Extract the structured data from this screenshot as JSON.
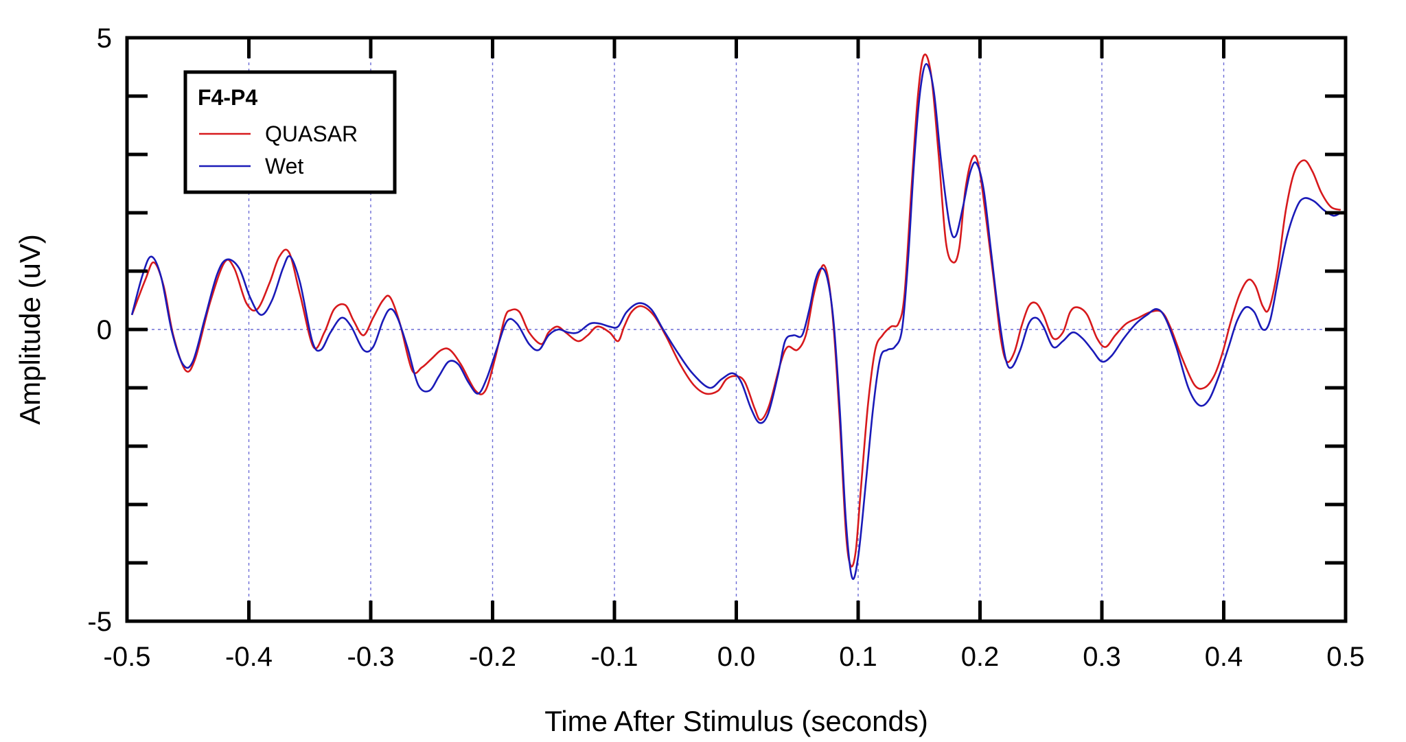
{
  "chart_data": {
    "type": "line",
    "xlabel": "Time After Stimulus (seconds)",
    "ylabel": "Amplitude (uV)",
    "xlim": [
      -0.5,
      0.5
    ],
    "ylim": [
      -5,
      5
    ],
    "x_ticks": [
      -0.5,
      -0.4,
      -0.3,
      -0.2,
      -0.1,
      0.0,
      0.1,
      0.2,
      0.3,
      0.4,
      0.5
    ],
    "x_tick_labels": [
      "-0.5",
      "-0.4",
      "-0.3",
      "-0.2",
      "-0.1",
      "0.0",
      "0.1",
      "0.2",
      "0.3",
      "0.4",
      "0.5"
    ],
    "y_tick_labels": [
      {
        "value": 5,
        "label": "5"
      },
      {
        "value": 0,
        "label": "0"
      },
      {
        "value": -5,
        "label": "-5"
      }
    ],
    "y_minor_ticks": [
      -4,
      -3,
      -2,
      -1,
      1,
      2,
      3,
      4
    ],
    "grid": "dashed at major ticks",
    "legend": {
      "title": "F4-P4",
      "position": "top-left",
      "entries": [
        {
          "name": "QUASAR",
          "color": "#d7191c"
        },
        {
          "name": "Wet",
          "color": "#1a1ab8"
        }
      ]
    },
    "series": [
      {
        "name": "QUASAR",
        "color": "#d7191c",
        "points": [
          [
            -0.496,
            0.25
          ],
          [
            -0.485,
            0.85
          ],
          [
            -0.478,
            1.15
          ],
          [
            -0.47,
            0.75
          ],
          [
            -0.462,
            -0.1
          ],
          [
            -0.452,
            -0.7
          ],
          [
            -0.444,
            -0.5
          ],
          [
            -0.432,
            0.45
          ],
          [
            -0.42,
            1.15
          ],
          [
            -0.412,
            1.05
          ],
          [
            -0.402,
            0.45
          ],
          [
            -0.393,
            0.35
          ],
          [
            -0.383,
            0.8
          ],
          [
            -0.375,
            1.25
          ],
          [
            -0.367,
            1.32
          ],
          [
            -0.358,
            0.6
          ],
          [
            -0.347,
            -0.3
          ],
          [
            -0.338,
            -0.05
          ],
          [
            -0.33,
            0.35
          ],
          [
            -0.321,
            0.42
          ],
          [
            -0.314,
            0.15
          ],
          [
            -0.306,
            -0.1
          ],
          [
            -0.298,
            0.2
          ],
          [
            -0.29,
            0.5
          ],
          [
            -0.284,
            0.55
          ],
          [
            -0.276,
            0.1
          ],
          [
            -0.266,
            -0.7
          ],
          [
            -0.258,
            -0.65
          ],
          [
            -0.25,
            -0.5
          ],
          [
            -0.242,
            -0.35
          ],
          [
            -0.235,
            -0.35
          ],
          [
            -0.226,
            -0.6
          ],
          [
            -0.214,
            -1.05
          ],
          [
            -0.206,
            -1.05
          ],
          [
            -0.198,
            -0.5
          ],
          [
            -0.19,
            0.2
          ],
          [
            -0.185,
            0.33
          ],
          [
            -0.178,
            0.3
          ],
          [
            -0.17,
            -0.05
          ],
          [
            -0.16,
            -0.25
          ],
          [
            -0.154,
            -0.05
          ],
          [
            -0.147,
            0.05
          ],
          [
            -0.14,
            -0.05
          ],
          [
            -0.13,
            -0.2
          ],
          [
            -0.122,
            -0.1
          ],
          [
            -0.114,
            0.05
          ],
          [
            -0.104,
            -0.05
          ],
          [
            -0.097,
            -0.2
          ],
          [
            -0.092,
            0.05
          ],
          [
            -0.086,
            0.3
          ],
          [
            -0.078,
            0.4
          ],
          [
            -0.068,
            0.25
          ],
          [
            -0.058,
            -0.1
          ],
          [
            -0.046,
            -0.6
          ],
          [
            -0.035,
            -0.95
          ],
          [
            -0.025,
            -1.1
          ],
          [
            -0.015,
            -1.05
          ],
          [
            -0.008,
            -0.85
          ],
          [
            0.0,
            -0.8
          ],
          [
            0.007,
            -0.9
          ],
          [
            0.015,
            -1.35
          ],
          [
            0.02,
            -1.55
          ],
          [
            0.027,
            -1.3
          ],
          [
            0.036,
            -0.6
          ],
          [
            0.042,
            -0.3
          ],
          [
            0.05,
            -0.35
          ],
          [
            0.057,
            -0.1
          ],
          [
            0.063,
            0.55
          ],
          [
            0.068,
            0.95
          ],
          [
            0.072,
            1.1
          ],
          [
            0.076,
            0.8
          ],
          [
            0.08,
            0.0
          ],
          [
            0.085,
            -1.6
          ],
          [
            0.09,
            -3.5
          ],
          [
            0.094,
            -4.05
          ],
          [
            0.098,
            -3.8
          ],
          [
            0.102,
            -2.8
          ],
          [
            0.108,
            -1.3
          ],
          [
            0.114,
            -0.35
          ],
          [
            0.12,
            -0.1
          ],
          [
            0.127,
            0.05
          ],
          [
            0.133,
            0.1
          ],
          [
            0.138,
            0.6
          ],
          [
            0.144,
            2.5
          ],
          [
            0.149,
            4.0
          ],
          [
            0.154,
            4.7
          ],
          [
            0.16,
            4.35
          ],
          [
            0.166,
            3.0
          ],
          [
            0.172,
            1.5
          ],
          [
            0.178,
            1.15
          ],
          [
            0.183,
            1.4
          ],
          [
            0.188,
            2.4
          ],
          [
            0.194,
            2.95
          ],
          [
            0.199,
            2.8
          ],
          [
            0.205,
            1.9
          ],
          [
            0.211,
            0.9
          ],
          [
            0.217,
            -0.15
          ],
          [
            0.222,
            -0.55
          ],
          [
            0.228,
            -0.4
          ],
          [
            0.234,
            0.05
          ],
          [
            0.24,
            0.4
          ],
          [
            0.246,
            0.45
          ],
          [
            0.252,
            0.25
          ],
          [
            0.26,
            -0.15
          ],
          [
            0.268,
            -0.05
          ],
          [
            0.274,
            0.3
          ],
          [
            0.28,
            0.38
          ],
          [
            0.288,
            0.25
          ],
          [
            0.296,
            -0.15
          ],
          [
            0.303,
            -0.3
          ],
          [
            0.311,
            -0.1
          ],
          [
            0.32,
            0.1
          ],
          [
            0.33,
            0.2
          ],
          [
            0.34,
            0.3
          ],
          [
            0.349,
            0.3
          ],
          [
            0.356,
            0.05
          ],
          [
            0.366,
            -0.5
          ],
          [
            0.376,
            -0.95
          ],
          [
            0.384,
            -1.0
          ],
          [
            0.392,
            -0.8
          ],
          [
            0.399,
            -0.4
          ],
          [
            0.406,
            0.15
          ],
          [
            0.413,
            0.6
          ],
          [
            0.42,
            0.85
          ],
          [
            0.426,
            0.75
          ],
          [
            0.432,
            0.4
          ],
          [
            0.437,
            0.35
          ],
          [
            0.444,
            1.0
          ],
          [
            0.451,
            2.05
          ],
          [
            0.458,
            2.7
          ],
          [
            0.466,
            2.9
          ],
          [
            0.473,
            2.7
          ],
          [
            0.48,
            2.35
          ],
          [
            0.488,
            2.1
          ],
          [
            0.496,
            2.05
          ]
        ]
      },
      {
        "name": "Wet",
        "color": "#1a1ab8",
        "points": [
          [
            -0.496,
            0.25
          ],
          [
            -0.487,
            0.95
          ],
          [
            -0.48,
            1.25
          ],
          [
            -0.472,
            0.9
          ],
          [
            -0.463,
            -0.05
          ],
          [
            -0.454,
            -0.6
          ],
          [
            -0.446,
            -0.55
          ],
          [
            -0.436,
            0.2
          ],
          [
            -0.426,
            0.95
          ],
          [
            -0.418,
            1.2
          ],
          [
            -0.408,
            1.05
          ],
          [
            -0.399,
            0.55
          ],
          [
            -0.39,
            0.25
          ],
          [
            -0.381,
            0.5
          ],
          [
            -0.372,
            1.05
          ],
          [
            -0.366,
            1.25
          ],
          [
            -0.358,
            0.8
          ],
          [
            -0.348,
            -0.2
          ],
          [
            -0.341,
            -0.35
          ],
          [
            -0.333,
            -0.05
          ],
          [
            -0.324,
            0.2
          ],
          [
            -0.316,
            0.05
          ],
          [
            -0.306,
            -0.35
          ],
          [
            -0.298,
            -0.3
          ],
          [
            -0.29,
            0.15
          ],
          [
            -0.284,
            0.35
          ],
          [
            -0.278,
            0.2
          ],
          [
            -0.27,
            -0.3
          ],
          [
            -0.261,
            -0.95
          ],
          [
            -0.252,
            -1.05
          ],
          [
            -0.244,
            -0.8
          ],
          [
            -0.236,
            -0.55
          ],
          [
            -0.228,
            -0.6
          ],
          [
            -0.22,
            -0.9
          ],
          [
            -0.212,
            -1.1
          ],
          [
            -0.205,
            -0.85
          ],
          [
            -0.196,
            -0.3
          ],
          [
            -0.188,
            0.15
          ],
          [
            -0.18,
            0.1
          ],
          [
            -0.17,
            -0.25
          ],
          [
            -0.162,
            -0.35
          ],
          [
            -0.154,
            -0.1
          ],
          [
            -0.146,
            0.0
          ],
          [
            -0.138,
            -0.05
          ],
          [
            -0.13,
            -0.05
          ],
          [
            -0.12,
            0.1
          ],
          [
            -0.112,
            0.1
          ],
          [
            -0.104,
            0.05
          ],
          [
            -0.097,
            0.05
          ],
          [
            -0.09,
            0.3
          ],
          [
            -0.08,
            0.45
          ],
          [
            -0.07,
            0.35
          ],
          [
            -0.06,
            0.0
          ],
          [
            -0.048,
            -0.4
          ],
          [
            -0.036,
            -0.75
          ],
          [
            -0.022,
            -1.0
          ],
          [
            -0.012,
            -0.85
          ],
          [
            -0.003,
            -0.75
          ],
          [
            0.004,
            -0.9
          ],
          [
            0.012,
            -1.35
          ],
          [
            0.019,
            -1.6
          ],
          [
            0.026,
            -1.45
          ],
          [
            0.034,
            -0.8
          ],
          [
            0.04,
            -0.2
          ],
          [
            0.047,
            -0.1
          ],
          [
            0.054,
            -0.1
          ],
          [
            0.06,
            0.35
          ],
          [
            0.065,
            0.85
          ],
          [
            0.07,
            1.05
          ],
          [
            0.075,
            0.85
          ],
          [
            0.08,
            0.1
          ],
          [
            0.085,
            -1.4
          ],
          [
            0.09,
            -3.3
          ],
          [
            0.095,
            -4.25
          ],
          [
            0.1,
            -3.9
          ],
          [
            0.106,
            -2.7
          ],
          [
            0.112,
            -1.4
          ],
          [
            0.118,
            -0.5
          ],
          [
            0.124,
            -0.35
          ],
          [
            0.13,
            -0.3
          ],
          [
            0.136,
            0.0
          ],
          [
            0.141,
            1.2
          ],
          [
            0.146,
            2.9
          ],
          [
            0.151,
            4.1
          ],
          [
            0.156,
            4.55
          ],
          [
            0.162,
            4.1
          ],
          [
            0.168,
            2.9
          ],
          [
            0.175,
            1.8
          ],
          [
            0.18,
            1.6
          ],
          [
            0.186,
            2.1
          ],
          [
            0.192,
            2.7
          ],
          [
            0.197,
            2.85
          ],
          [
            0.203,
            2.4
          ],
          [
            0.209,
            1.35
          ],
          [
            0.215,
            0.3
          ],
          [
            0.221,
            -0.5
          ],
          [
            0.226,
            -0.65
          ],
          [
            0.233,
            -0.35
          ],
          [
            0.24,
            0.1
          ],
          [
            0.246,
            0.2
          ],
          [
            0.252,
            0.05
          ],
          [
            0.26,
            -0.3
          ],
          [
            0.268,
            -0.2
          ],
          [
            0.276,
            -0.05
          ],
          [
            0.284,
            -0.15
          ],
          [
            0.292,
            -0.35
          ],
          [
            0.3,
            -0.55
          ],
          [
            0.308,
            -0.45
          ],
          [
            0.318,
            -0.15
          ],
          [
            0.328,
            0.1
          ],
          [
            0.337,
            0.25
          ],
          [
            0.345,
            0.35
          ],
          [
            0.352,
            0.2
          ],
          [
            0.361,
            -0.3
          ],
          [
            0.371,
            -1.0
          ],
          [
            0.38,
            -1.3
          ],
          [
            0.388,
            -1.2
          ],
          [
            0.396,
            -0.8
          ],
          [
            0.404,
            -0.3
          ],
          [
            0.411,
            0.15
          ],
          [
            0.418,
            0.38
          ],
          [
            0.425,
            0.3
          ],
          [
            0.432,
            0.0
          ],
          [
            0.438,
            0.15
          ],
          [
            0.445,
            0.9
          ],
          [
            0.452,
            1.6
          ],
          [
            0.46,
            2.1
          ],
          [
            0.466,
            2.25
          ],
          [
            0.474,
            2.2
          ],
          [
            0.482,
            2.05
          ],
          [
            0.49,
            1.95
          ],
          [
            0.496,
            2.0
          ]
        ]
      }
    ]
  }
}
